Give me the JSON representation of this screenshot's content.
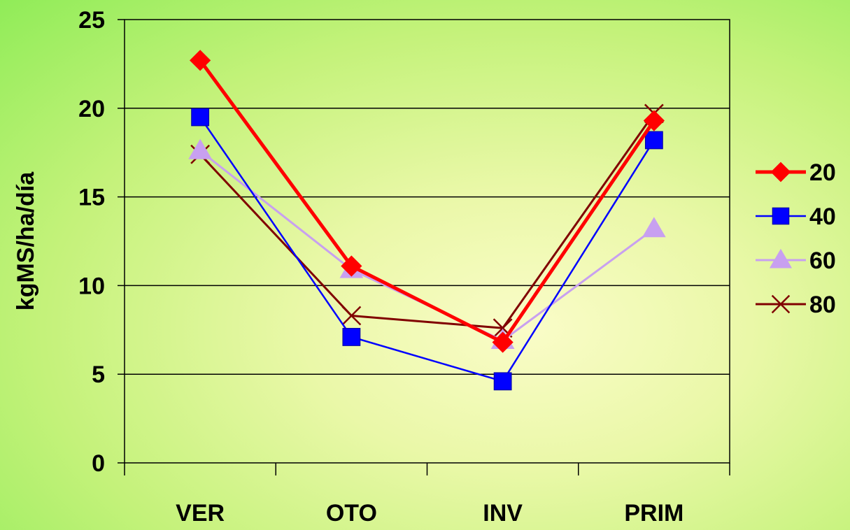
{
  "chart_data": {
    "type": "line",
    "categories": [
      "VER",
      "OTO",
      "INV",
      "PRIM"
    ],
    "ylabel": "kgMS/ha/día",
    "ylim": [
      0,
      25
    ],
    "yticks": [
      0,
      5,
      10,
      15,
      20,
      25
    ],
    "grid": true,
    "legend_position": "right",
    "series": [
      {
        "name": "20",
        "values": [
          22.7,
          11.1,
          6.8,
          19.3
        ],
        "color": "#ff0000",
        "marker": "diamond"
      },
      {
        "name": "40",
        "values": [
          19.5,
          7.1,
          4.6,
          18.2
        ],
        "color": "#0000ff",
        "marker": "square"
      },
      {
        "name": "60",
        "values": [
          17.6,
          10.9,
          6.9,
          13.2
        ],
        "color": "#c8a0f0",
        "marker": "triangle"
      },
      {
        "name": "80",
        "values": [
          17.4,
          8.3,
          7.6,
          19.7
        ],
        "color": "#800000",
        "marker": "x"
      }
    ]
  }
}
